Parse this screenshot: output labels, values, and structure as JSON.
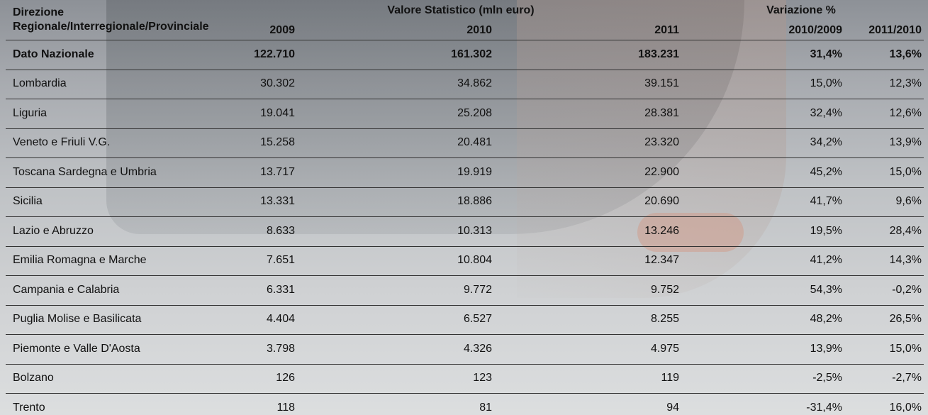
{
  "header": {
    "row_label": [
      "Direzione",
      "Regionale/Interregionale/Provinciale"
    ],
    "groups": [
      "Valore Statistico (mln euro)",
      "Variazione %"
    ],
    "columns": [
      "2009",
      "2010",
      "2011",
      "2010/2009",
      "2011/2010"
    ]
  },
  "table": {
    "rows": [
      [
        "Dato Nazionale",
        "122.710",
        "161.302",
        "183.231",
        "31,4%",
        "13,6%"
      ],
      [
        "Lombardia",
        "30.302",
        "34.862",
        "39.151",
        "15,0%",
        "12,3%"
      ],
      [
        "Liguria",
        "19.041",
        "25.208",
        "28.381",
        "32,4%",
        "12,6%"
      ],
      [
        "Veneto e Friuli V.G.",
        "15.258",
        "20.481",
        "23.320",
        "34,2%",
        "13,9%"
      ],
      [
        "Toscana Sardegna e Umbria",
        "13.717",
        "19.919",
        "22.900",
        "45,2%",
        "15,0%"
      ],
      [
        "Sicilia",
        "13.331",
        "18.886",
        "20.690",
        "41,7%",
        "9,6%"
      ],
      [
        "Lazio e Abruzzo",
        "8.633",
        "10.313",
        "13.246",
        "19,5%",
        "28,4%"
      ],
      [
        "Emilia Romagna e Marche",
        "7.651",
        "10.804",
        "12.347",
        "41,2%",
        "14,3%"
      ],
      [
        "Campania e Calabria",
        "6.331",
        "9.772",
        "9.752",
        "54,3%",
        "-0,2%"
      ],
      [
        "Puglia Molise e Basilicata",
        "4.404",
        "6.527",
        "8.255",
        "48,2%",
        "26,5%"
      ],
      [
        "Piemonte e Valle D'Aosta",
        "3.798",
        "4.326",
        "4.975",
        "13,9%",
        "15,0%"
      ],
      [
        "Bolzano",
        "126",
        "123",
        "119",
        "-2,5%",
        "-2,7%"
      ],
      [
        "Trento",
        "118",
        "81",
        "94",
        "-31,4%",
        "16,0%"
      ]
    ]
  }
}
